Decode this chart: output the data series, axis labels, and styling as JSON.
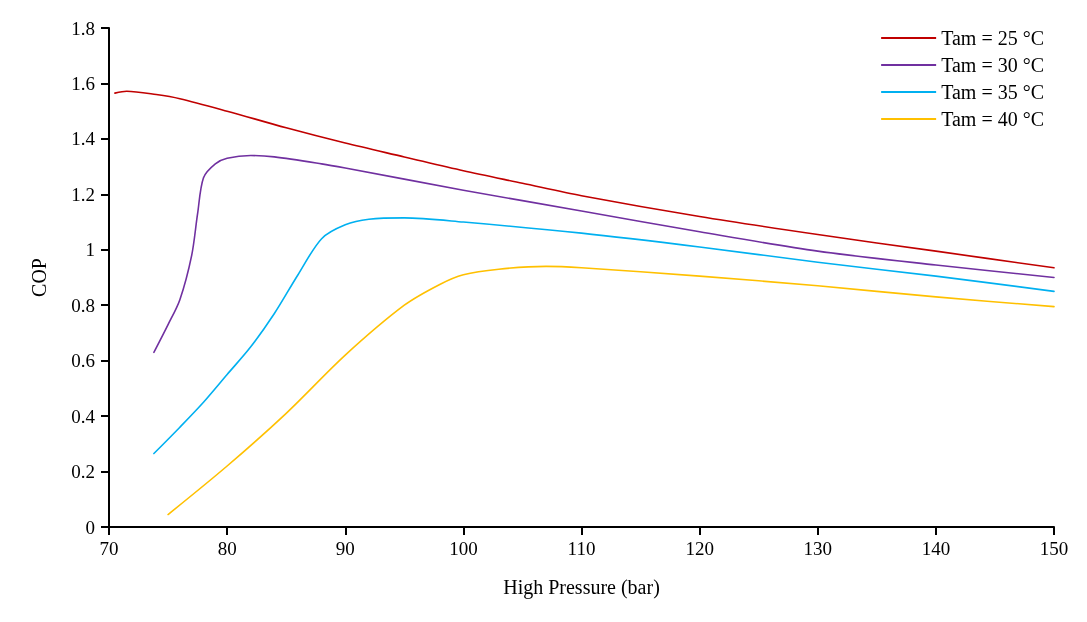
{
  "chart_data": {
    "type": "line",
    "xlabel": "High Pressure (bar)",
    "ylabel": "COP",
    "xlim": [
      70,
      150
    ],
    "xticks": [
      70,
      80,
      90,
      100,
      110,
      120,
      130,
      140,
      150
    ],
    "ylim": [
      0,
      1.8
    ],
    "yticks": [
      0,
      0.2,
      0.4,
      0.6,
      0.8,
      1,
      1.2,
      1.4,
      1.6,
      1.8
    ],
    "grid": false,
    "legend": "top right",
    "marker": "none",
    "line_style": "solid",
    "series": [
      {
        "name": "Tam = 25 °C",
        "color": "#c00000",
        "x": [
          70.5,
          71.5,
          74,
          76,
          80,
          85,
          90,
          95,
          100,
          105,
          110,
          120,
          130,
          140,
          150
        ],
        "values": [
          1.565,
          1.572,
          1.56,
          1.545,
          1.5,
          1.44,
          1.385,
          1.335,
          1.285,
          1.24,
          1.195,
          1.12,
          1.055,
          0.995,
          0.935
        ]
      },
      {
        "name": "Tam = 30 °C",
        "color": "#7030a0",
        "x": [
          73.8,
          75,
          76,
          77,
          77.5,
          78,
          79,
          80,
          82,
          84,
          88,
          90,
          100,
          110,
          120,
          130,
          140,
          150
        ],
        "values": [
          0.63,
          0.73,
          0.82,
          0.98,
          1.13,
          1.26,
          1.31,
          1.33,
          1.34,
          1.335,
          1.31,
          1.295,
          1.215,
          1.14,
          1.065,
          0.995,
          0.945,
          0.9
        ]
      },
      {
        "name": "Tam = 35 °C",
        "color": "#00b0f0",
        "x": [
          73.8,
          76,
          78,
          80,
          82,
          84,
          86,
          88,
          90,
          92,
          95,
          100,
          110,
          120,
          130,
          140,
          150
        ],
        "values": [
          0.265,
          0.36,
          0.45,
          0.55,
          0.65,
          0.77,
          0.91,
          1.04,
          1.09,
          1.11,
          1.115,
          1.1,
          1.06,
          1.01,
          0.955,
          0.905,
          0.85
        ]
      },
      {
        "name": "Tam = 40 °C",
        "color": "#ffc000",
        "x": [
          75,
          80,
          85,
          90,
          95,
          98,
          100,
          103,
          107,
          110,
          120,
          130,
          140,
          150
        ],
        "values": [
          0.045,
          0.22,
          0.41,
          0.62,
          0.8,
          0.875,
          0.91,
          0.93,
          0.94,
          0.935,
          0.905,
          0.87,
          0.83,
          0.795
        ]
      }
    ]
  }
}
